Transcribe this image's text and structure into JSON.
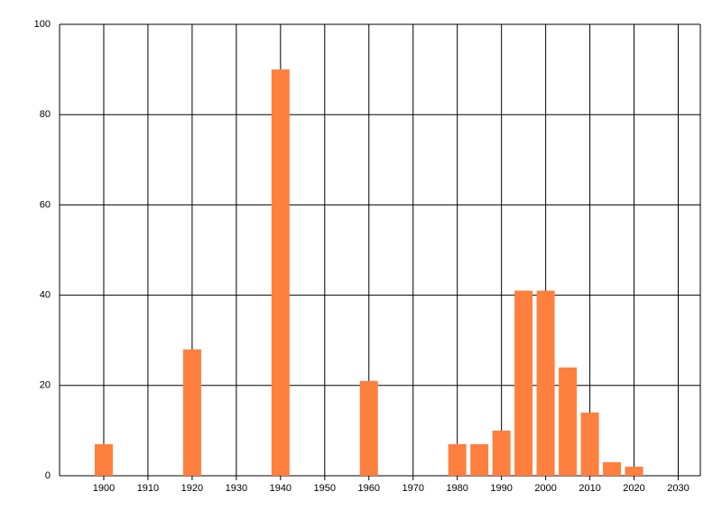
{
  "chart_data": {
    "type": "bar",
    "x": [
      1900,
      1920,
      1940,
      1960,
      1980,
      1985,
      1990,
      1995,
      2000,
      2005,
      2010,
      2015,
      2020
    ],
    "values": [
      7,
      28,
      90,
      21,
      7,
      7,
      10,
      41,
      41,
      24,
      14,
      3,
      2
    ],
    "color": "#ff7f3f",
    "xlim": [
      1890,
      2035
    ],
    "xticks": [
      1900,
      1910,
      1920,
      1930,
      1940,
      1950,
      1960,
      1970,
      1980,
      1990,
      2000,
      2010,
      2020,
      2030
    ],
    "ylim": [
      0,
      100
    ],
    "yticks": [
      0,
      20,
      40,
      60,
      80,
      100
    ],
    "grid": true
  }
}
